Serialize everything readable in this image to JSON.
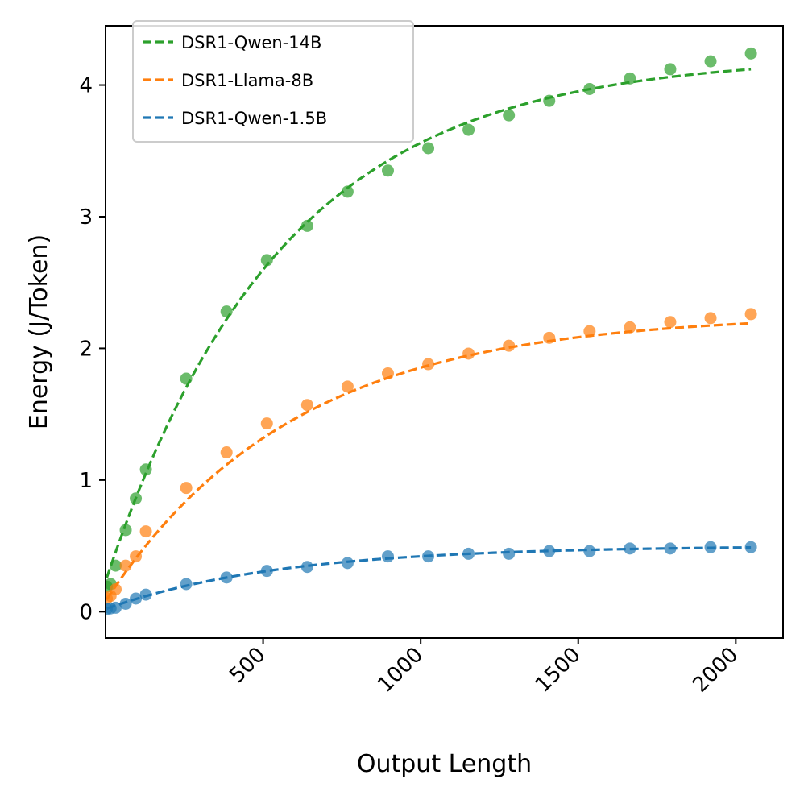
{
  "chart_data": {
    "type": "scatter",
    "title": "",
    "xlabel": "Output Length",
    "ylabel": "Energy (J/Token)",
    "xlim": [
      0,
      2150
    ],
    "ylim": [
      -0.2,
      4.45
    ],
    "xticks": [
      500,
      1000,
      1500,
      2000
    ],
    "yticks": [
      0,
      1,
      2,
      3,
      4
    ],
    "legend_position": "top-left",
    "series": [
      {
        "name": "DSR1-Qwen-14B",
        "color": "#2ca02c",
        "points": [
          [
            4,
            0.19
          ],
          [
            16,
            0.21
          ],
          [
            32,
            0.35
          ],
          [
            64,
            0.62
          ],
          [
            96,
            0.86
          ],
          [
            128,
            1.08
          ],
          [
            256,
            1.77
          ],
          [
            384,
            2.28
          ],
          [
            512,
            2.67
          ],
          [
            640,
            2.93
          ],
          [
            768,
            3.19
          ],
          [
            896,
            3.35
          ],
          [
            1024,
            3.52
          ],
          [
            1152,
            3.66
          ],
          [
            1280,
            3.77
          ],
          [
            1408,
            3.88
          ],
          [
            1536,
            3.97
          ],
          [
            1664,
            4.05
          ],
          [
            1792,
            4.12
          ],
          [
            1920,
            4.18
          ],
          [
            2048,
            4.24
          ]
        ],
        "fit": {
          "a": 4.22,
          "k": 0.0018,
          "c": 0.23
        }
      },
      {
        "name": "DSR1-Llama-8B",
        "color": "#ff7f0e",
        "points": [
          [
            4,
            0.1
          ],
          [
            16,
            0.12
          ],
          [
            32,
            0.17
          ],
          [
            64,
            0.35
          ],
          [
            96,
            0.42
          ],
          [
            128,
            0.61
          ],
          [
            256,
            0.94
          ],
          [
            384,
            1.21
          ],
          [
            512,
            1.43
          ],
          [
            640,
            1.57
          ],
          [
            768,
            1.71
          ],
          [
            896,
            1.81
          ],
          [
            1024,
            1.88
          ],
          [
            1152,
            1.96
          ],
          [
            1280,
            2.02
          ],
          [
            1408,
            2.08
          ],
          [
            1536,
            2.13
          ],
          [
            1664,
            2.16
          ],
          [
            1792,
            2.2
          ],
          [
            1920,
            2.23
          ],
          [
            2048,
            2.26
          ]
        ],
        "fit": {
          "a": 2.26,
          "k": 0.00168,
          "c": 0.08
        }
      },
      {
        "name": "DSR1-Qwen-1.5B",
        "color": "#1f77b4",
        "points": [
          [
            4,
            0.02
          ],
          [
            16,
            0.025
          ],
          [
            32,
            0.03
          ],
          [
            64,
            0.06
          ],
          [
            96,
            0.1
          ],
          [
            128,
            0.13
          ],
          [
            256,
            0.21
          ],
          [
            384,
            0.26
          ],
          [
            512,
            0.31
          ],
          [
            640,
            0.34
          ],
          [
            768,
            0.37
          ],
          [
            896,
            0.42
          ],
          [
            1024,
            0.42
          ],
          [
            1152,
            0.44
          ],
          [
            1280,
            0.44
          ],
          [
            1408,
            0.46
          ],
          [
            1536,
            0.46
          ],
          [
            1664,
            0.48
          ],
          [
            1792,
            0.48
          ],
          [
            1920,
            0.49
          ],
          [
            2048,
            0.49
          ]
        ],
        "fit": {
          "a": 0.5,
          "k": 0.0018,
          "c": 0.02
        }
      }
    ]
  }
}
